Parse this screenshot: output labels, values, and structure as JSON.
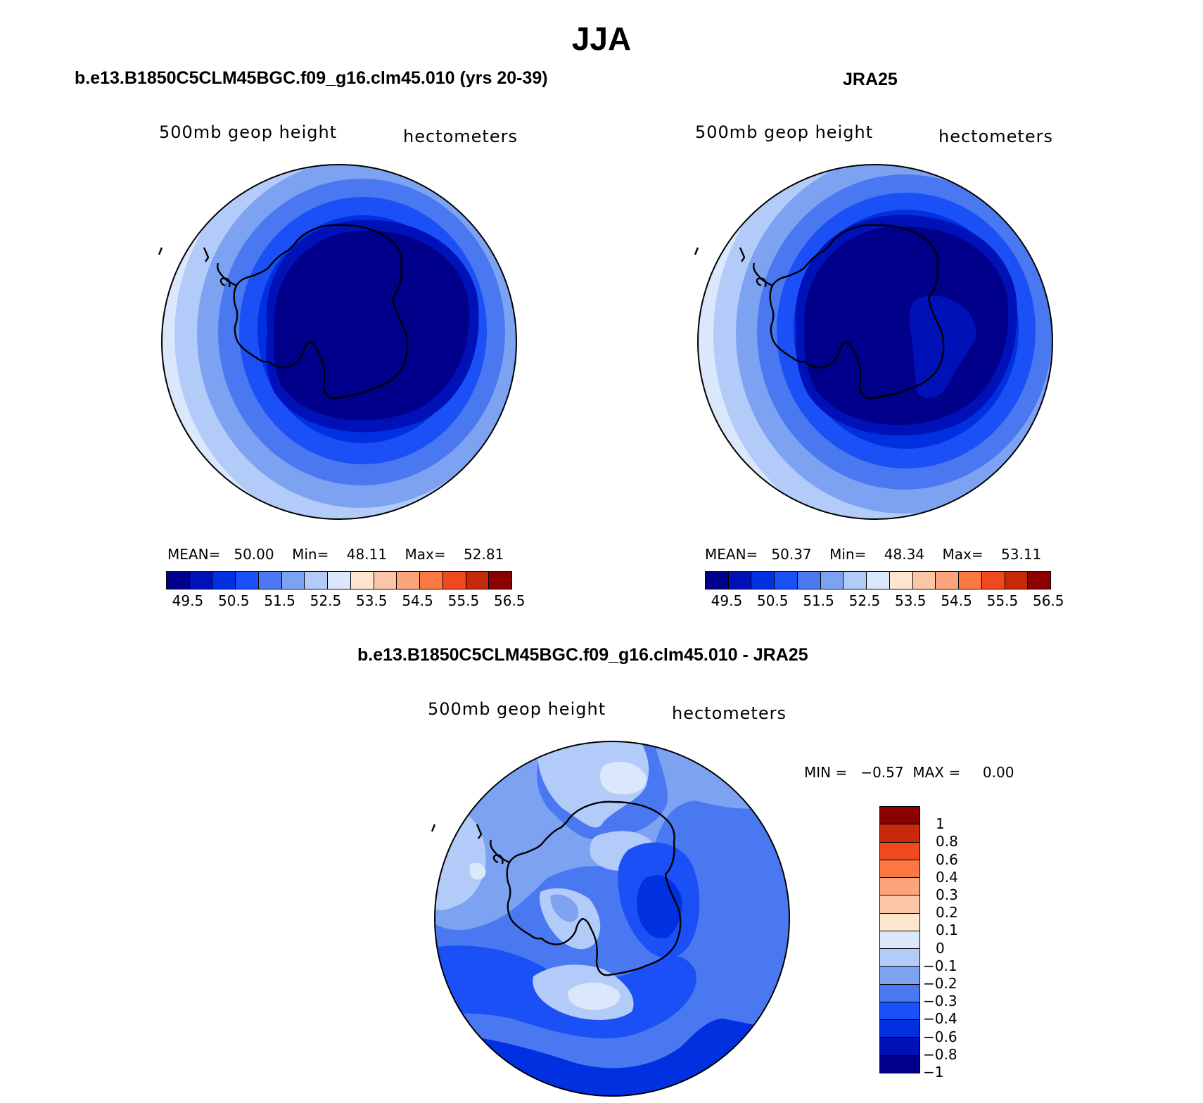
{
  "title": "JJA",
  "colors": {
    "model_and_obs_scale": [
      "#00008b",
      "#0011b8",
      "#0030e0",
      "#1a50f5",
      "#4a78f0",
      "#7ea2f2",
      "#b3cbf9",
      "#dbe8fb",
      "#fde6d0",
      "#fcc6a6",
      "#fca47c",
      "#fb7843",
      "#ef4a1d",
      "#c62a0b",
      "#8b0000"
    ],
    "difference_scale": [
      "#00008b",
      "#0011b8",
      "#0030e0",
      "#1a50f5",
      "#4a78f0",
      "#7ea2f2",
      "#b3cbf9",
      "#dbe8fb",
      "#fde6d0",
      "#fcc6a6",
      "#fca47c",
      "#fb7843",
      "#ef4a1d",
      "#c62a0b",
      "#8b0000"
    ]
  },
  "panels": {
    "model": {
      "title": "b.e13.B1850C5CLM45BGC.f09_g16.clm45.010 (yrs 20-39)",
      "variable": "500mb  geop  height",
      "units": "hectometers",
      "stats": {
        "mean_label": "MEAN=",
        "mean": "50.00",
        "min_label": "Min=",
        "min": "48.11",
        "max_label": "Max=",
        "max": "52.81"
      },
      "colorbar_ticks": [
        "49.5",
        "50.5",
        "51.5",
        "52.5",
        "53.5",
        "54.5",
        "55.5",
        "56.5"
      ]
    },
    "obs": {
      "title": "JRA25",
      "variable": "500mb  geop  height",
      "units": "hectometers",
      "stats": {
        "mean_label": "MEAN=",
        "mean": "50.37",
        "min_label": "Min=",
        "min": "48.34",
        "max_label": "Max=",
        "max": "53.11"
      },
      "colorbar_ticks": [
        "49.5",
        "50.5",
        "51.5",
        "52.5",
        "53.5",
        "54.5",
        "55.5",
        "56.5"
      ]
    },
    "difference": {
      "title": "b.e13.B1850C5CLM45BGC.f09_g16.clm45.010 - JRA25",
      "variable": "500mb  geop  height",
      "units": "hectometers",
      "stats": {
        "min_label": "MIN =",
        "min": "−0.57",
        "max_label": "MAX =",
        "max": "0.00"
      },
      "colorbar_ticks": [
        "1",
        "0.8",
        "0.6",
        "0.4",
        "0.3",
        "0.2",
        "0.1",
        "0",
        "−0.1",
        "−0.2",
        "−0.3",
        "−0.4",
        "−0.6",
        "−0.8",
        "−1"
      ]
    }
  }
}
